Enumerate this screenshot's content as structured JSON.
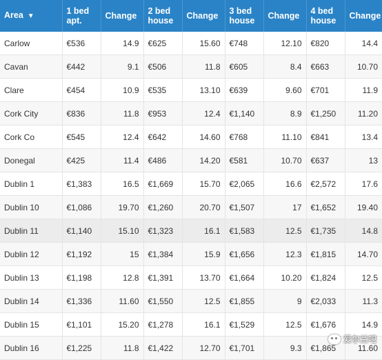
{
  "table": {
    "headers": [
      "Area",
      "1 bed\napt.",
      "Change",
      "2 bed\nhouse",
      "Change",
      "3 bed\nhouse",
      "Change",
      "4 bed\nhouse",
      "Change"
    ],
    "sort_indicator": "▼",
    "rows": [
      [
        "Carlow",
        "€536",
        "14.9",
        "€625",
        "15.60",
        "€748",
        "12.10",
        "€820",
        "14.4"
      ],
      [
        "Cavan",
        "€442",
        "9.1",
        "€506",
        "11.8",
        "€605",
        "8.4",
        "€663",
        "10.70"
      ],
      [
        "Clare",
        "€454",
        "10.9",
        "€535",
        "13.10",
        "€639",
        "9.60",
        "€701",
        "11.9"
      ],
      [
        "Cork City",
        "€836",
        "11.8",
        "€953",
        "12.4",
        "€1,140",
        "8.9",
        "€1,250",
        "11.20"
      ],
      [
        "Cork Co",
        "€545",
        "12.4",
        "€642",
        "14.60",
        "€768",
        "11.10",
        "€841",
        "13.4"
      ],
      [
        "Donegal",
        "€425",
        "11.4",
        "€486",
        "14.20",
        "€581",
        "10.70",
        "€637",
        "13"
      ],
      [
        "Dublin 1",
        "€1,383",
        "16.5",
        "€1,669",
        "15.70",
        "€2,065",
        "16.6",
        "€2,572",
        "17.6"
      ],
      [
        "Dublin 10",
        "€1,086",
        "19.70",
        "€1,260",
        "20.70",
        "€1,507",
        "17",
        "€1,652",
        "19.40"
      ],
      [
        "Dublin 11",
        "€1,140",
        "15.10",
        "€1,323",
        "16.1",
        "€1,583",
        "12.5",
        "€1,735",
        "14.8"
      ],
      [
        "Dublin 12",
        "€1,192",
        "15",
        "€1,384",
        "15.9",
        "€1,656",
        "12.3",
        "€1,815",
        "14.70"
      ],
      [
        "Dublin 13",
        "€1,198",
        "12.8",
        "€1,391",
        "13.70",
        "€1,664",
        "10.20",
        "€1,824",
        "12.5"
      ],
      [
        "Dublin 14",
        "€1,336",
        "11.60",
        "€1,550",
        "12.5",
        "€1,855",
        "9",
        "€2,033",
        "11.3"
      ],
      [
        "Dublin 15",
        "€1,101",
        "15.20",
        "€1,278",
        "16.1",
        "€1,529",
        "12.5",
        "€1,676",
        "14.9"
      ],
      [
        "Dublin 16",
        "€1,225",
        "11.8",
        "€1,422",
        "12.70",
        "€1,701",
        "9.3",
        "€1,865",
        "11.60"
      ]
    ],
    "highlighted_row": 8
  },
  "watermark": {
    "text": "爱尔兰吧",
    "icon": "wechat-icon"
  }
}
